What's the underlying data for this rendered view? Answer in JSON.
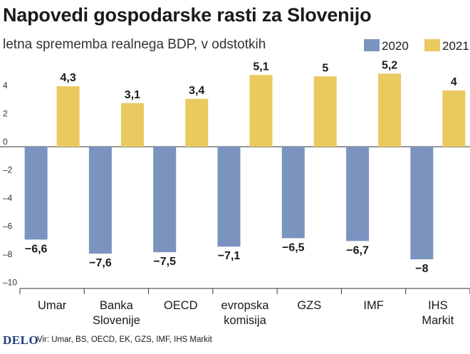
{
  "header": {
    "title": "Napovedi gospodarske rasti za Slovenijo",
    "subtitle": "letna sprememba realnega BDP, v odstotkih"
  },
  "footer": {
    "brand": "DELO",
    "source": "Vir: Umar, BS, OECD, EK, GZS, IMF, IHS Markit"
  },
  "colors": {
    "series_2020": "#7a93bf",
    "series_2021": "#eac95f"
  },
  "chart_data": {
    "type": "bar",
    "title": "Napovedi gospodarske rasti za Slovenijo",
    "subtitle": "letna sprememba realnega BDP, v odstotkih",
    "categories": [
      [
        "Umar"
      ],
      [
        "Banka",
        "Slovenije"
      ],
      [
        "OECD"
      ],
      [
        "evropska",
        "komisija"
      ],
      [
        "GZS"
      ],
      [
        "IMF"
      ],
      [
        "IHS",
        "Markit"
      ]
    ],
    "series": [
      {
        "name": "2020",
        "values": [
          -6.6,
          -7.6,
          -7.5,
          -7.1,
          -6.5,
          -6.7,
          -8
        ],
        "labels": [
          "−6,6",
          "−7,6",
          "−7,5",
          "−7,1",
          "−6,5",
          "−6,7",
          "−8"
        ]
      },
      {
        "name": "2021",
        "values": [
          4.3,
          3.1,
          3.4,
          5.1,
          5,
          5.2,
          4
        ],
        "labels": [
          "4,3",
          "3,1",
          "3,4",
          "5,1",
          "5",
          "5,2",
          "4"
        ]
      }
    ],
    "yticks": [
      4,
      2,
      0,
      -2,
      -4,
      -6,
      -8,
      -10
    ],
    "ytick_labels": [
      "4",
      "2",
      "0",
      "–2",
      "–4",
      "–6",
      "–8",
      "–10"
    ],
    "ylim": [
      -10,
      6
    ],
    "grid": false,
    "legend": "top-right"
  }
}
